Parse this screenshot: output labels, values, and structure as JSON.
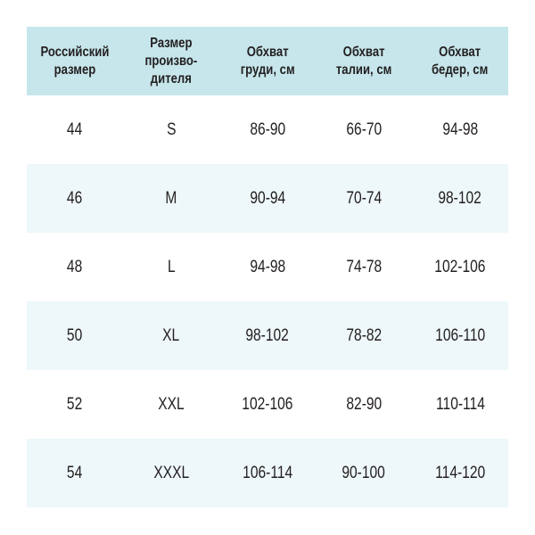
{
  "colors": {
    "header_bg": "#c6e6eb",
    "alt_row_bg": "#eef7f9",
    "text": "#231f20"
  },
  "headers": [
    "Российский\nразмер",
    "Размер\nпроизво-\nдителя",
    "Обхват\nгруди, см",
    "Обхват\nталии, см",
    "Обхват\nбедер, см"
  ],
  "rows": [
    [
      "44",
      "S",
      "86-90",
      "66-70",
      "94-98"
    ],
    [
      "46",
      "M",
      "90-94",
      "70-74",
      "98-102"
    ],
    [
      "48",
      "L",
      "94-98",
      "74-78",
      "102-106"
    ],
    [
      "50",
      "XL",
      "98-102",
      "78-82",
      "106-110"
    ],
    [
      "52",
      "XXL",
      "102-106",
      "82-90",
      "110-114"
    ],
    [
      "54",
      "XXXL",
      "106-114",
      "90-100",
      "114-120"
    ]
  ]
}
